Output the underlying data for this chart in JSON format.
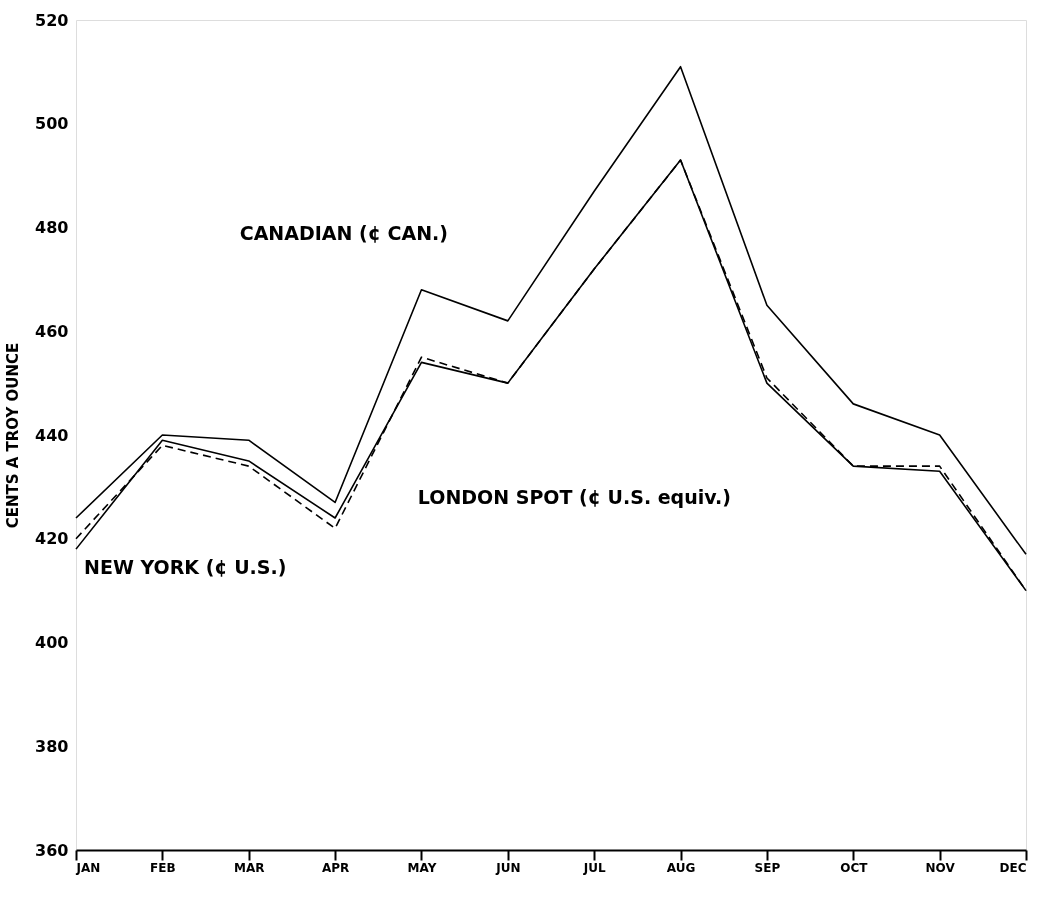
{
  "chart_data": {
    "type": "line",
    "ylabel": "CENTS A TROY OUNCE",
    "categories": [
      "JAN",
      "FEB",
      "MAR",
      "APR",
      "MAY",
      "JUN",
      "JUL",
      "AUG",
      "SEP",
      "OCT",
      "NOV",
      "DEC"
    ],
    "series": [
      {
        "name": "CANADIAN (¢ CAN.)",
        "color": "#000000",
        "line_style": "solid",
        "values": [
          424,
          440,
          439,
          427,
          468,
          462,
          487,
          511,
          465,
          446,
          440,
          417
        ]
      },
      {
        "name": "NEW YORK (¢ U.S.)",
        "color": "#000000",
        "line_style": "solid",
        "values": [
          418,
          439,
          435,
          424,
          454,
          450,
          472,
          493,
          450,
          434,
          433,
          410
        ]
      },
      {
        "name": "LONDON SPOT (¢ U.S. equiv.)",
        "color": "#000000",
        "line_style": "dashed",
        "values": [
          420,
          438,
          434,
          422,
          455,
          450,
          472,
          493,
          451,
          434,
          434,
          410
        ]
      }
    ],
    "ylim": [
      360,
      520
    ],
    "yticks": [
      360,
      380,
      400,
      420,
      440,
      460,
      480,
      500,
      520
    ],
    "grid": false,
    "legend": false,
    "marker": "none"
  }
}
